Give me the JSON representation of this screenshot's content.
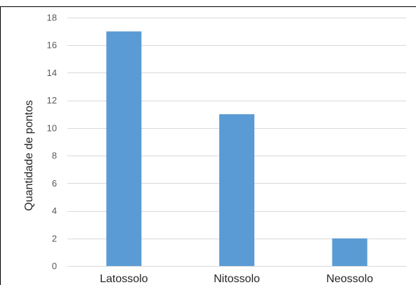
{
  "chart_data": {
    "type": "bar",
    "categories": [
      "Latossolo",
      "Nitossolo",
      "Neossolo"
    ],
    "values": [
      17,
      11,
      2
    ],
    "title": "",
    "xlabel": "",
    "ylabel": "Quantidade de pontos",
    "ylim": [
      0,
      18
    ],
    "yticks": [
      0,
      2,
      4,
      6,
      8,
      10,
      12,
      14,
      16,
      18
    ],
    "grid": true,
    "legend": "none",
    "bar_color": "#5b9bd5"
  }
}
